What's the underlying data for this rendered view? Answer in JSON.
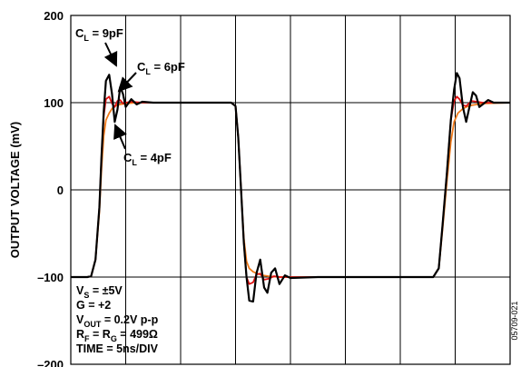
{
  "chart_data": {
    "type": "line",
    "ylabel": "OUTPUT VOLTAGE (mV)",
    "ylim": [
      -200,
      200
    ],
    "yticks": [
      200,
      100,
      0,
      -100,
      -200
    ],
    "ytick_labels": [
      "200",
      "100",
      "0",
      "–100",
      "–200"
    ],
    "x_divisions": 8,
    "time_per_div": "5ns/DIV",
    "grid": true,
    "annotations": [
      {
        "text": "C",
        "sub": "L",
        "rest": " = 9pF",
        "points_to_series": "C_L = 9pF"
      },
      {
        "text": "C",
        "sub": "L",
        "rest": " = 6pF",
        "points_to_series": "C_L = 6pF"
      },
      {
        "text": "C",
        "sub": "L",
        "rest": " = 4pF",
        "points_to_series": "C_L = 4pF"
      }
    ],
    "conditions": [
      {
        "pre": "V",
        "sub": "S",
        "post": " = ±5V"
      },
      {
        "pre": "G = +2",
        "sub": "",
        "post": ""
      },
      {
        "pre": "V",
        "sub": "OUT",
        "post": " = 0.2V p-p"
      },
      {
        "pre": "R",
        "sub": "F",
        "post": " = R",
        "sub2": "G",
        "post2": " = 499Ω"
      },
      {
        "pre": "TIME = 5ns/DIV",
        "sub": "",
        "post": ""
      }
    ],
    "figure_id": "05709-021",
    "series": [
      {
        "name": "C_L = 9pF",
        "color": "#000000",
        "x": [
          0.0,
          0.3,
          0.37,
          0.45,
          0.52,
          0.56,
          0.6,
          0.64,
          0.7,
          0.75,
          0.8,
          0.85,
          0.9,
          0.95,
          1.0,
          1.1,
          1.2,
          1.3,
          1.5,
          2.0,
          2.5,
          2.92,
          3.0,
          3.05,
          3.1,
          3.15,
          3.2,
          3.25,
          3.32,
          3.38,
          3.45,
          3.52,
          3.58,
          3.65,
          3.72,
          3.8,
          3.9,
          4.0,
          4.5,
          5.0,
          5.5,
          6.0,
          6.6,
          6.7,
          6.77,
          6.85,
          6.92,
          6.98,
          7.03,
          7.08,
          7.14,
          7.2,
          7.26,
          7.32,
          7.38,
          7.44,
          7.5,
          7.6,
          7.7,
          7.8,
          8.0
        ],
        "y": [
          -100,
          -100,
          -99,
          -80,
          -20,
          40,
          90,
          125,
          132,
          110,
          78,
          92,
          118,
          110,
          95,
          104,
          98,
          101,
          100,
          100,
          100,
          100,
          96,
          60,
          0,
          -60,
          -100,
          -127,
          -128,
          -96,
          -80,
          -112,
          -118,
          -95,
          -90,
          -108,
          -98,
          -101,
          -100,
          -100,
          -100,
          -100,
          -100,
          -90,
          -40,
          20,
          80,
          115,
          134,
          128,
          95,
          78,
          95,
          112,
          108,
          95,
          98,
          103,
          100,
          100,
          100
        ]
      },
      {
        "name": "C_L = 6pF",
        "color": "#dd1111",
        "x": [
          0.0,
          0.3,
          0.37,
          0.45,
          0.52,
          0.56,
          0.6,
          0.64,
          0.7,
          0.75,
          0.8,
          0.85,
          0.9,
          0.95,
          1.0,
          1.1,
          1.3,
          1.5,
          2.0,
          2.5,
          2.92,
          3.0,
          3.05,
          3.1,
          3.15,
          3.2,
          3.25,
          3.32,
          3.38,
          3.45,
          3.52,
          3.6,
          3.7,
          3.8,
          4.0,
          4.5,
          5.0,
          5.5,
          6.0,
          6.6,
          6.7,
          6.77,
          6.85,
          6.92,
          6.98,
          7.03,
          7.08,
          7.14,
          7.2,
          7.3,
          7.4,
          7.5,
          8.0
        ],
        "y": [
          -100,
          -100,
          -99,
          -80,
          -20,
          40,
          85,
          104,
          107,
          99,
          95,
          102,
          103,
          99,
          100,
          101,
          100,
          100,
          100,
          100,
          100,
          96,
          60,
          0,
          -60,
          -100,
          -108,
          -106,
          -97,
          -96,
          -103,
          -102,
          -99,
          -100,
          -100,
          -100,
          -100,
          -100,
          -100,
          -100,
          -90,
          -40,
          20,
          80,
          102,
          107,
          104,
          97,
          96,
          102,
          101,
          100,
          100
        ]
      },
      {
        "name": "C_L = 4pF",
        "color": "#f07a1a",
        "x": [
          0.0,
          0.3,
          0.37,
          0.45,
          0.52,
          0.56,
          0.6,
          0.64,
          0.7,
          0.75,
          0.8,
          0.9,
          1.0,
          1.2,
          1.5,
          2.0,
          2.5,
          2.92,
          3.0,
          3.05,
          3.1,
          3.15,
          3.2,
          3.25,
          3.32,
          3.4,
          3.5,
          3.6,
          3.8,
          4.0,
          4.5,
          5.0,
          5.5,
          6.0,
          6.6,
          6.7,
          6.77,
          6.85,
          6.92,
          6.98,
          7.05,
          7.14,
          7.2,
          7.3,
          7.5,
          8.0
        ],
        "y": [
          -100,
          -100,
          -99,
          -80,
          -25,
          25,
          62,
          80,
          88,
          93,
          96,
          98,
          99,
          100,
          100,
          100,
          100,
          100,
          96,
          60,
          0,
          -55,
          -82,
          -90,
          -94,
          -96,
          -98,
          -99,
          -100,
          -100,
          -100,
          -100,
          -100,
          -100,
          -100,
          -90,
          -45,
          10,
          55,
          78,
          88,
          93,
          95,
          97,
          99,
          100
        ]
      }
    ]
  }
}
